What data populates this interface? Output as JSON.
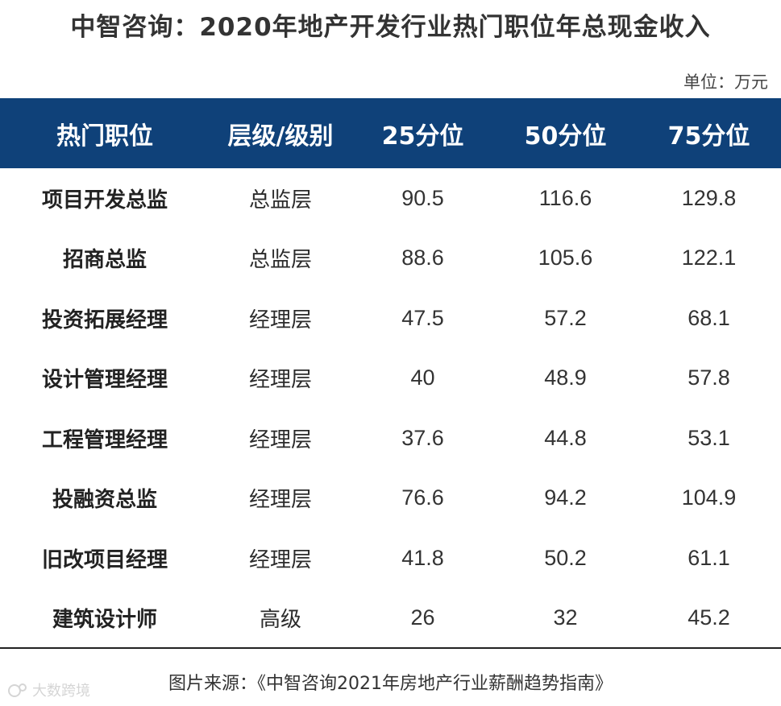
{
  "title": "中智咨询：2020年地产开发行业热门职位年总现金收入",
  "unit": "单位：万元",
  "table": {
    "headers": [
      "热门职位",
      "层级/级别",
      "25分位",
      "50分位",
      "75分位"
    ],
    "rows": [
      [
        "项目开发总监",
        "总监层",
        "90.5",
        "116.6",
        "129.8"
      ],
      [
        "招商总监",
        "总监层",
        "88.6",
        "105.6",
        "122.1"
      ],
      [
        "投资拓展经理",
        "经理层",
        "47.5",
        "57.2",
        "68.1"
      ],
      [
        "设计管理经理",
        "经理层",
        "40",
        "48.9",
        "57.8"
      ],
      [
        "工程管理经理",
        "经理层",
        "37.6",
        "44.8",
        "53.1"
      ],
      [
        "投融资总监",
        "经理层",
        "76.6",
        "94.2",
        "104.9"
      ],
      [
        "旧改项目经理",
        "经理层",
        "41.8",
        "50.2",
        "61.1"
      ],
      [
        "建筑设计师",
        "高级",
        "26",
        "32",
        "45.2"
      ]
    ]
  },
  "source": "图片来源：《中智咨询2021年房地产行业薪酬趋势指南》",
  "watermark": "大数跨境",
  "colors": {
    "header_bg": "#0f4179",
    "header_text": "#ffffff"
  }
}
